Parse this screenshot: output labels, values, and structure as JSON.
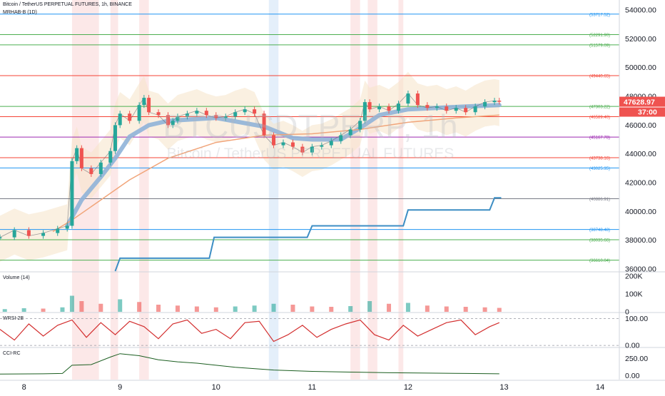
{
  "header": {
    "symbol_line": "Bitcoin / TetherUS PERPETUAL FUTURES, 1h, BINANCE",
    "indicator_line": "MRHAB-B (1D)"
  },
  "watermark": {
    "ticker": "BTCUSDTPERP, 1h",
    "name": "Bitcoin / TetherUS PERPETUAL FUTURES"
  },
  "colors": {
    "up": "#26a69a",
    "down": "#ef5350",
    "step_line": "#3d8ec4",
    "ma_fast": "#8fb2d8",
    "ma_slow": "#f1a57a",
    "band": "#f5e3c9",
    "price_badge": "#ef5350",
    "highlight_red": "#fbe0e0",
    "highlight_blue": "#dbeaf8"
  },
  "chart_data": [
    {
      "type": "line",
      "title": "Bitcoin / TetherUS PERPETUAL FUTURES, 1h, BINANCE",
      "x_axis": {
        "ticks": [
          "8",
          "9",
          "10",
          "11",
          "12",
          "13",
          "14"
        ],
        "xlim": [
          7.75,
          14.2
        ]
      },
      "y_axis": {
        "ticks": [
          "36000.00",
          "38000.00",
          "40000.00",
          "42000.00",
          "44000.00",
          "46000.00",
          "48000.00",
          "50000.00",
          "52000.00",
          "54000.00"
        ],
        "ylim": [
          35850,
          54700
        ]
      },
      "last_price": "47628.97",
      "countdown": "37:00",
      "price_series": {
        "x": [
          7.75,
          7.9,
          8.05,
          8.2,
          8.35,
          8.45,
          8.5,
          8.55,
          8.6,
          8.7,
          8.8,
          8.9,
          8.95,
          9.0,
          9.1,
          9.2,
          9.25,
          9.3,
          9.4,
          9.5,
          9.55,
          9.6,
          9.7,
          9.8,
          9.9,
          10.0,
          10.1,
          10.2,
          10.3,
          10.4,
          10.5,
          10.6,
          10.7,
          10.8,
          10.9,
          11.0,
          11.1,
          11.2,
          11.3,
          11.4,
          11.5,
          11.55,
          11.6,
          11.7,
          11.8,
          11.9,
          12.0,
          12.1,
          12.2,
          12.3,
          12.4,
          12.5,
          12.6,
          12.7,
          12.8,
          12.9,
          12.95
        ],
        "values": [
          38200,
          38700,
          38300,
          38500,
          38800,
          39000,
          43500,
          44400,
          43000,
          42600,
          43400,
          44200,
          46000,
          46800,
          46300,
          47400,
          47900,
          46900,
          46700,
          46000,
          46300,
          46600,
          46800,
          47000,
          46700,
          46500,
          46600,
          46900,
          47100,
          46800,
          45300,
          44600,
          44800,
          44500,
          44100,
          44500,
          44600,
          44900,
          45300,
          45700,
          46300,
          47600,
          47100,
          47300,
          47000,
          47500,
          48200,
          47400,
          47200,
          47300,
          47000,
          47200,
          46900,
          47300,
          47600,
          47700,
          47629
        ]
      },
      "series": [
        {
          "x": [
            8.45,
            8.6,
            8.8,
            8.95,
            9.1,
            9.3,
            9.5,
            10.0,
            10.5,
            10.8,
            11.0,
            11.3,
            11.5,
            11.7,
            12.0,
            12.3,
            12.6,
            12.95
          ],
          "values": [
            39000,
            40800,
            42400,
            43700,
            45200,
            46000,
            46300,
            46500,
            45900,
            45100,
            45000,
            45000,
            45800,
            46700,
            47100,
            47200,
            47300,
            47400
          ]
        },
        {
          "x": [
            8.3,
            8.5,
            8.8,
            9.1,
            9.5,
            10.0,
            10.5,
            11.0,
            11.5,
            12.0,
            12.5,
            12.95
          ],
          "values": [
            38600,
            39400,
            40800,
            42200,
            43700,
            44800,
            45300,
            45400,
            45700,
            46200,
            46500,
            46700
          ]
        }
      ],
      "step_line": {
        "x": [
          8.95,
          9.0,
          9.93,
          9.98,
          10.95,
          11.0,
          11.95,
          12.0,
          12.85,
          12.9,
          12.97
        ],
        "values": [
          35850,
          36750,
          36750,
          38200,
          38200,
          39000,
          39000,
          40100,
          40100,
          40950,
          40950
        ]
      },
      "levels": [
        {
          "value": 53717.52,
          "label": "(53717.52)",
          "color": "#2196f3"
        },
        {
          "value": 52291.9,
          "label": "(52291.90)",
          "color": "#4caf50"
        },
        {
          "value": 51579.09,
          "label": "(51579.09)",
          "color": "#4caf50"
        },
        {
          "value": 49440.65,
          "label": "(49440.65)",
          "color": "#f44336"
        },
        {
          "value": 47303.22,
          "label": "(47303.22)",
          "color": "#4caf50"
        },
        {
          "value": 46589.4,
          "label": "(46589.40)",
          "color": "#f44336"
        },
        {
          "value": 45167.78,
          "label": "(45167.78)",
          "color": "#9c27b0"
        },
        {
          "value": 43738.16,
          "label": "(43738.16)",
          "color": "#f44336"
        },
        {
          "value": 43025.35,
          "label": "(43025.35)",
          "color": "#2196f3"
        },
        {
          "value": 40886.91,
          "label": "(40886.91)",
          "color": "#787b86"
        },
        {
          "value": 38748.48,
          "label": "(38748.48)",
          "color": "#2196f3"
        },
        {
          "value": 38035.66,
          "label": "(38035.66)",
          "color": "#4caf50"
        },
        {
          "value": 36610.04,
          "label": "(36610.04)",
          "color": "#4caf50"
        }
      ]
    },
    {
      "type": "bar",
      "title": "Volume (14)",
      "y_axis": {
        "ticks": [
          "0",
          "100K",
          "200K"
        ],
        "ylim": [
          0,
          220000
        ]
      },
      "x": [
        7.8,
        8.0,
        8.2,
        8.4,
        8.5,
        8.6,
        8.8,
        9.0,
        9.2,
        9.4,
        9.6,
        9.8,
        10.0,
        10.2,
        10.4,
        10.6,
        10.8,
        11.0,
        11.2,
        11.4,
        11.6,
        11.8,
        12.0,
        12.2,
        12.4,
        12.6,
        12.8,
        12.95
      ],
      "values": [
        15000,
        20000,
        18000,
        25000,
        90000,
        60000,
        45000,
        70000,
        55000,
        40000,
        35000,
        30000,
        25000,
        30000,
        35000,
        45000,
        40000,
        30000,
        28000,
        32000,
        60000,
        45000,
        50000,
        35000,
        30000,
        28000,
        25000,
        22000
      ]
    },
    {
      "type": "line",
      "title": "WRSI-2B",
      "y_axis": {
        "ticks": [
          "0.00",
          "100.00"
        ],
        "ylim": [
          -5,
          120
        ]
      },
      "x": [
        7.75,
        7.9,
        8.05,
        8.2,
        8.35,
        8.5,
        8.65,
        8.8,
        8.95,
        9.1,
        9.25,
        9.4,
        9.55,
        9.7,
        9.85,
        10.0,
        10.15,
        10.3,
        10.45,
        10.6,
        10.75,
        10.9,
        11.05,
        11.2,
        11.35,
        11.5,
        11.65,
        11.8,
        11.95,
        12.1,
        12.25,
        12.4,
        12.55,
        12.7,
        12.85,
        12.95
      ],
      "values": [
        60,
        20,
        80,
        35,
        75,
        95,
        30,
        85,
        40,
        90,
        70,
        25,
        80,
        95,
        45,
        60,
        25,
        85,
        90,
        15,
        40,
        75,
        30,
        60,
        80,
        95,
        40,
        20,
        75,
        35,
        60,
        85,
        95,
        40,
        70,
        85
      ]
    },
    {
      "type": "line",
      "title": "CCI-RC",
      "y_axis": {
        "ticks": [
          "0.00",
          "250.00"
        ],
        "ylim": [
          -60,
          400
        ]
      },
      "x": [
        7.75,
        8.2,
        8.4,
        8.5,
        8.7,
        8.9,
        9.0,
        9.2,
        9.4,
        9.6,
        9.8,
        10.2,
        10.6,
        11.0,
        11.4,
        11.8,
        12.2,
        12.6,
        12.95
      ],
      "values": [
        20,
        25,
        30,
        150,
        160,
        270,
        320,
        290,
        230,
        200,
        180,
        120,
        80,
        60,
        50,
        40,
        35,
        30,
        25
      ]
    }
  ]
}
